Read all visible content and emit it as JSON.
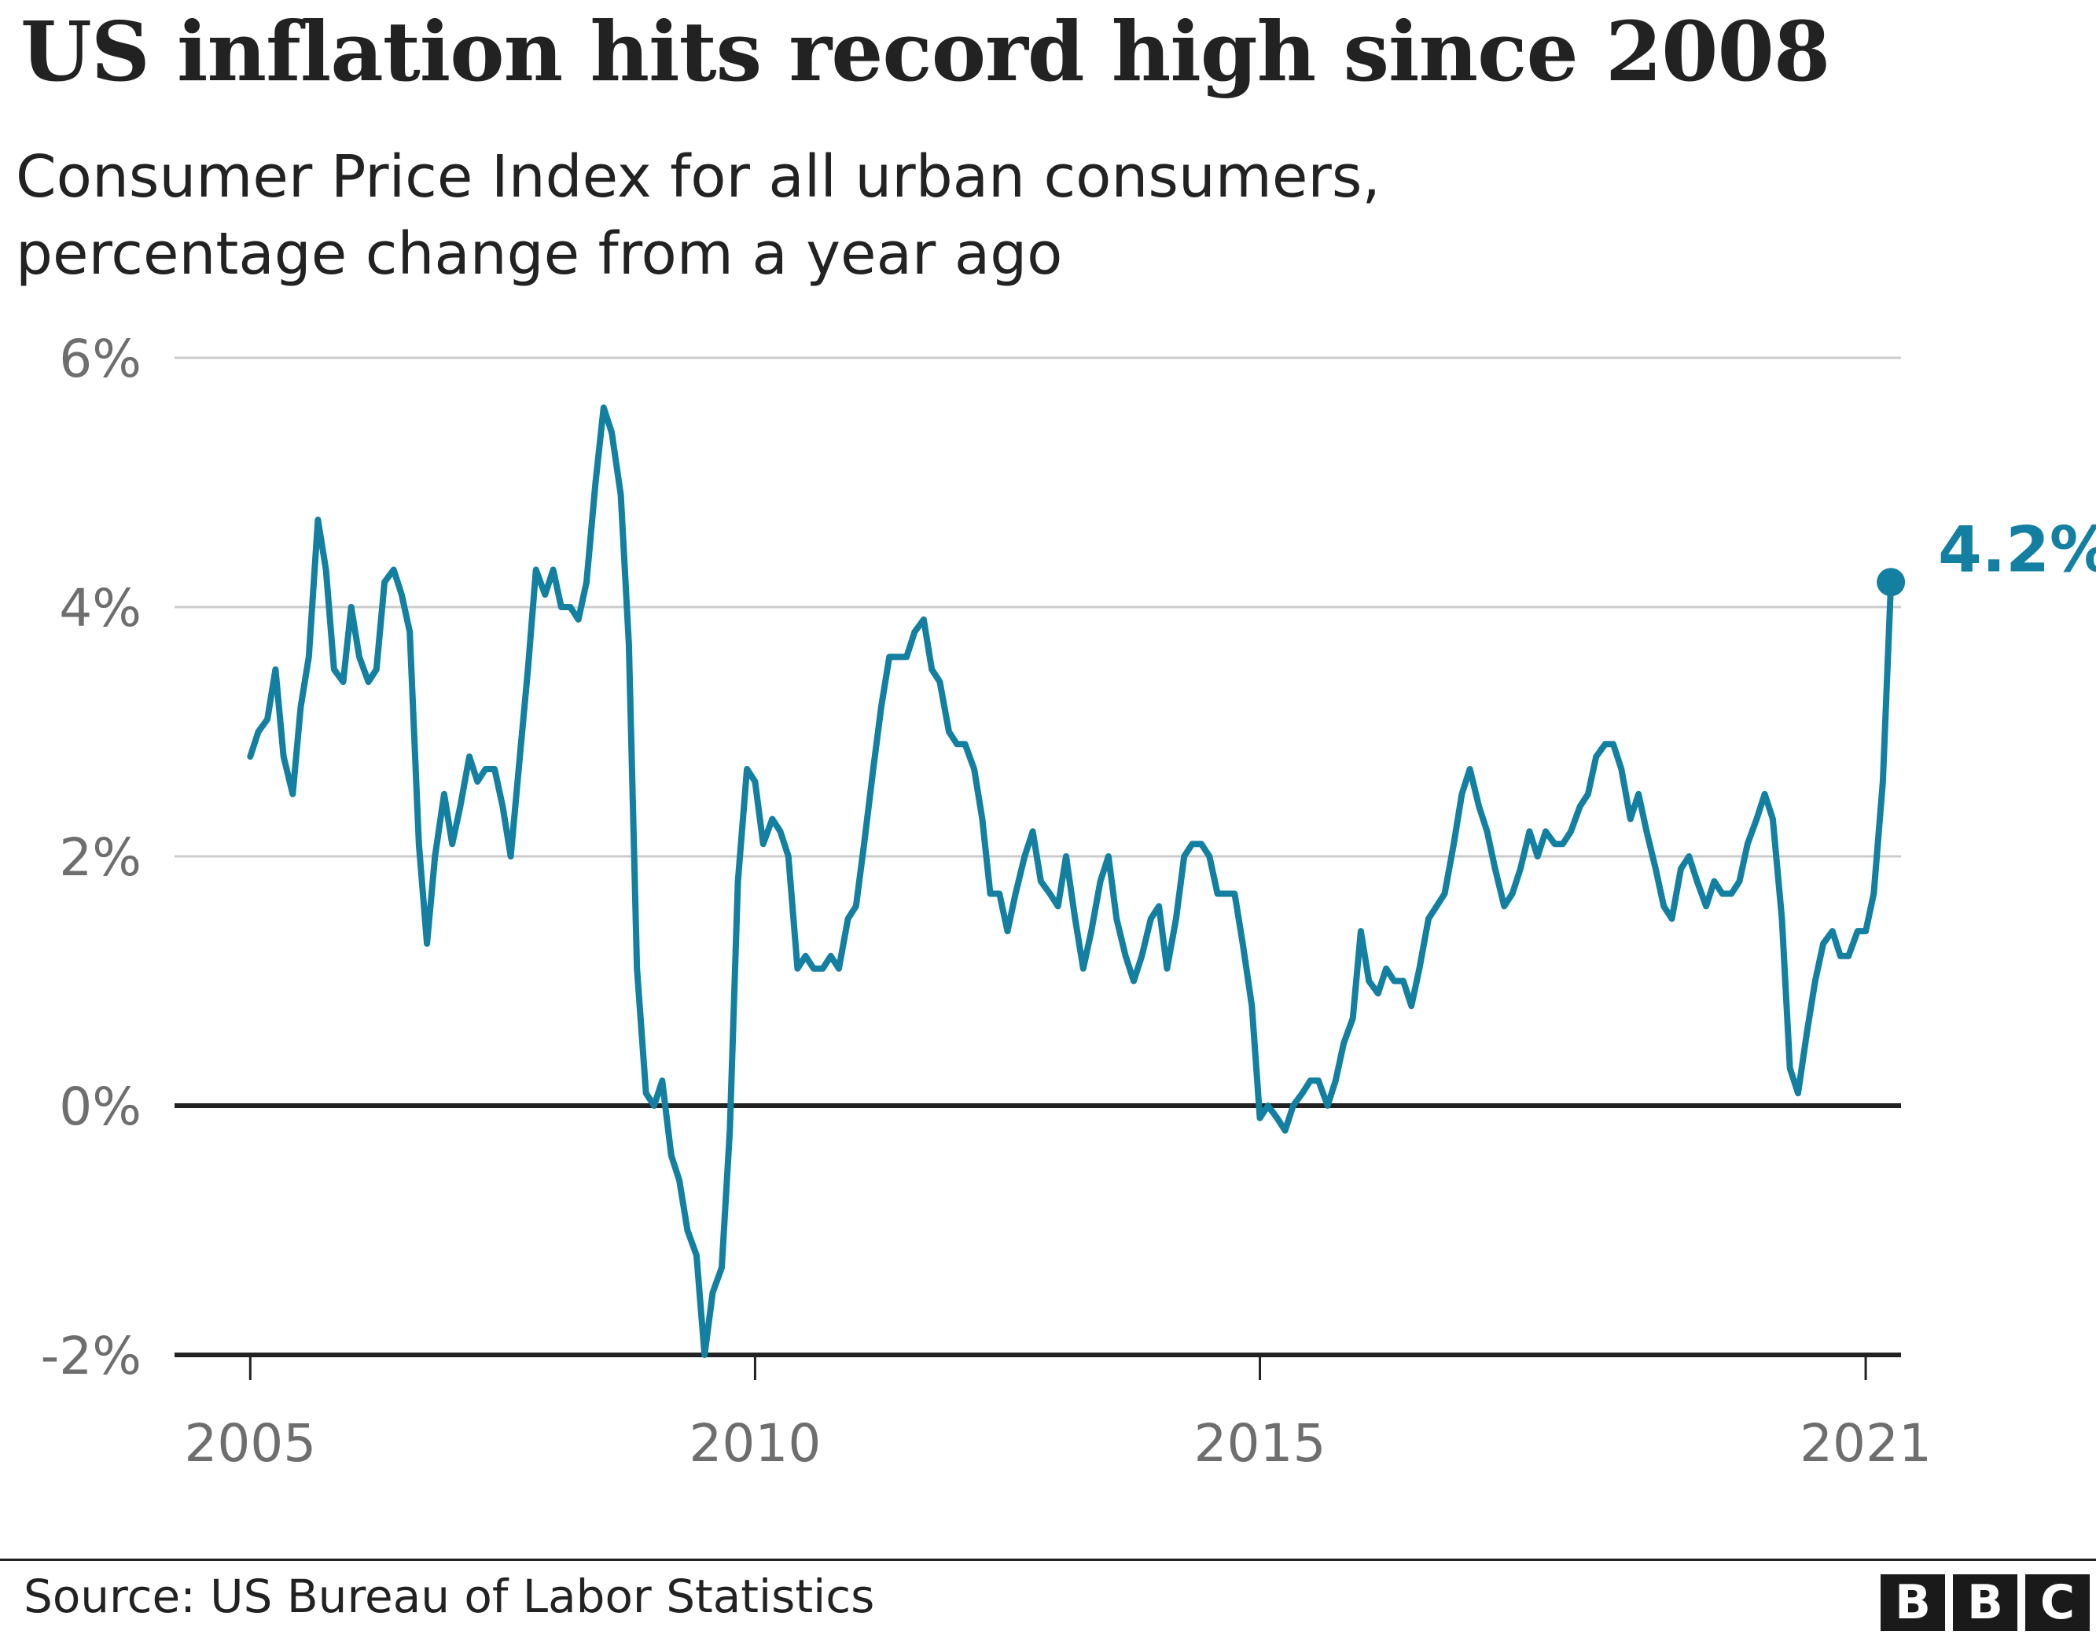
{
  "header": {
    "title": "US inflation hits record high since 2008",
    "subtitle_lines": [
      "Consumer Price Index for all urban consumers,",
      "percentage change from a year ago"
    ]
  },
  "chart_data": {
    "type": "line",
    "title": "US inflation hits record high since 2008",
    "subtitle": "Consumer Price Index for all urban consumers, percentage change from a year ago",
    "xlabel": "",
    "ylabel": "",
    "x_ticks": [
      {
        "value": 2005,
        "label": "2005"
      },
      {
        "value": 2010,
        "label": "2010"
      },
      {
        "value": 2015,
        "label": "2015"
      },
      {
        "value": 2021,
        "label": "2021"
      }
    ],
    "y_ticks": [
      {
        "value": 6,
        "label": "6%"
      },
      {
        "value": 4,
        "label": "4%"
      },
      {
        "value": 2,
        "label": "2%"
      },
      {
        "value": 0,
        "label": "0%"
      },
      {
        "value": -2,
        "label": "-2%"
      }
    ],
    "xlim": [
      2004.25,
      2021.35
    ],
    "ylim": [
      -2,
      6
    ],
    "grid": true,
    "line_color": "#1380A1",
    "series": [
      {
        "name": "",
        "values": [
          [
            2005.0,
            2.8
          ],
          [
            2005.08,
            3.0
          ],
          [
            2005.17,
            3.1
          ],
          [
            2005.25,
            3.5
          ],
          [
            2005.33,
            2.8
          ],
          [
            2005.42,
            2.5
          ],
          [
            2005.5,
            3.2
          ],
          [
            2005.58,
            3.6
          ],
          [
            2005.67,
            4.7
          ],
          [
            2005.75,
            4.3
          ],
          [
            2005.83,
            3.5
          ],
          [
            2005.92,
            3.4
          ],
          [
            2006.0,
            4.0
          ],
          [
            2006.08,
            3.6
          ],
          [
            2006.17,
            3.4
          ],
          [
            2006.25,
            3.5
          ],
          [
            2006.33,
            4.2
          ],
          [
            2006.42,
            4.3
          ],
          [
            2006.5,
            4.1
          ],
          [
            2006.58,
            3.8
          ],
          [
            2006.67,
            2.1
          ],
          [
            2006.75,
            1.3
          ],
          [
            2006.83,
            2.0
          ],
          [
            2006.92,
            2.5
          ],
          [
            2007.0,
            2.1
          ],
          [
            2007.08,
            2.4
          ],
          [
            2007.17,
            2.8
          ],
          [
            2007.25,
            2.6
          ],
          [
            2007.33,
            2.7
          ],
          [
            2007.42,
            2.7
          ],
          [
            2007.5,
            2.4
          ],
          [
            2007.58,
            2.0
          ],
          [
            2007.67,
            2.8
          ],
          [
            2007.75,
            3.5
          ],
          [
            2007.83,
            4.3
          ],
          [
            2007.92,
            4.1
          ],
          [
            2008.0,
            4.3
          ],
          [
            2008.08,
            4.0
          ],
          [
            2008.17,
            4.0
          ],
          [
            2008.25,
            3.9
          ],
          [
            2008.33,
            4.2
          ],
          [
            2008.42,
            5.0
          ],
          [
            2008.5,
            5.6
          ],
          [
            2008.58,
            5.4
          ],
          [
            2008.67,
            4.9
          ],
          [
            2008.75,
            3.7
          ],
          [
            2008.83,
            1.1
          ],
          [
            2008.92,
            0.1
          ],
          [
            2009.0,
            0.0
          ],
          [
            2009.08,
            0.2
          ],
          [
            2009.17,
            -0.4
          ],
          [
            2009.25,
            -0.6
          ],
          [
            2009.33,
            -1.0
          ],
          [
            2009.42,
            -1.2
          ],
          [
            2009.5,
            -2.0
          ],
          [
            2009.58,
            -1.5
          ],
          [
            2009.67,
            -1.3
          ],
          [
            2009.75,
            -0.2
          ],
          [
            2009.83,
            1.8
          ],
          [
            2009.92,
            2.7
          ],
          [
            2010.0,
            2.6
          ],
          [
            2010.08,
            2.1
          ],
          [
            2010.17,
            2.3
          ],
          [
            2010.25,
            2.2
          ],
          [
            2010.33,
            2.0
          ],
          [
            2010.42,
            1.1
          ],
          [
            2010.5,
            1.2
          ],
          [
            2010.58,
            1.1
          ],
          [
            2010.67,
            1.1
          ],
          [
            2010.75,
            1.2
          ],
          [
            2010.83,
            1.1
          ],
          [
            2010.92,
            1.5
          ],
          [
            2011.0,
            1.6
          ],
          [
            2011.08,
            2.1
          ],
          [
            2011.17,
            2.7
          ],
          [
            2011.25,
            3.2
          ],
          [
            2011.33,
            3.6
          ],
          [
            2011.42,
            3.6
          ],
          [
            2011.5,
            3.6
          ],
          [
            2011.58,
            3.8
          ],
          [
            2011.67,
            3.9
          ],
          [
            2011.75,
            3.5
          ],
          [
            2011.83,
            3.4
          ],
          [
            2011.92,
            3.0
          ],
          [
            2012.0,
            2.9
          ],
          [
            2012.08,
            2.9
          ],
          [
            2012.17,
            2.7
          ],
          [
            2012.25,
            2.3
          ],
          [
            2012.33,
            1.7
          ],
          [
            2012.42,
            1.7
          ],
          [
            2012.5,
            1.4
          ],
          [
            2012.58,
            1.7
          ],
          [
            2012.67,
            2.0
          ],
          [
            2012.75,
            2.2
          ],
          [
            2012.83,
            1.8
          ],
          [
            2012.92,
            1.7
          ],
          [
            2013.0,
            1.6
          ],
          [
            2013.08,
            2.0
          ],
          [
            2013.17,
            1.5
          ],
          [
            2013.25,
            1.1
          ],
          [
            2013.33,
            1.4
          ],
          [
            2013.42,
            1.8
          ],
          [
            2013.5,
            2.0
          ],
          [
            2013.58,
            1.5
          ],
          [
            2013.67,
            1.2
          ],
          [
            2013.75,
            1.0
          ],
          [
            2013.83,
            1.2
          ],
          [
            2013.92,
            1.5
          ],
          [
            2014.0,
            1.6
          ],
          [
            2014.08,
            1.1
          ],
          [
            2014.17,
            1.5
          ],
          [
            2014.25,
            2.0
          ],
          [
            2014.33,
            2.1
          ],
          [
            2014.42,
            2.1
          ],
          [
            2014.5,
            2.0
          ],
          [
            2014.58,
            1.7
          ],
          [
            2014.67,
            1.7
          ],
          [
            2014.75,
            1.7
          ],
          [
            2014.83,
            1.3
          ],
          [
            2014.92,
            0.8
          ],
          [
            2015.0,
            -0.1
          ],
          [
            2015.08,
            0.0
          ],
          [
            2015.17,
            -0.1
          ],
          [
            2015.25,
            -0.2
          ],
          [
            2015.33,
            0.0
          ],
          [
            2015.42,
            0.1
          ],
          [
            2015.5,
            0.2
          ],
          [
            2015.58,
            0.2
          ],
          [
            2015.67,
            0.0
          ],
          [
            2015.75,
            0.2
          ],
          [
            2015.83,
            0.5
          ],
          [
            2015.92,
            0.7
          ],
          [
            2016.0,
            1.4
          ],
          [
            2016.08,
            1.0
          ],
          [
            2016.17,
            0.9
          ],
          [
            2016.25,
            1.1
          ],
          [
            2016.33,
            1.0
          ],
          [
            2016.42,
            1.0
          ],
          [
            2016.5,
            0.8
          ],
          [
            2016.58,
            1.1
          ],
          [
            2016.67,
            1.5
          ],
          [
            2016.75,
            1.6
          ],
          [
            2016.83,
            1.7
          ],
          [
            2016.92,
            2.1
          ],
          [
            2017.0,
            2.5
          ],
          [
            2017.08,
            2.7
          ],
          [
            2017.17,
            2.4
          ],
          [
            2017.25,
            2.2
          ],
          [
            2017.33,
            1.9
          ],
          [
            2017.42,
            1.6
          ],
          [
            2017.5,
            1.7
          ],
          [
            2017.58,
            1.9
          ],
          [
            2017.67,
            2.2
          ],
          [
            2017.75,
            2.0
          ],
          [
            2017.83,
            2.2
          ],
          [
            2017.92,
            2.1
          ],
          [
            2018.0,
            2.1
          ],
          [
            2018.08,
            2.2
          ],
          [
            2018.17,
            2.4
          ],
          [
            2018.25,
            2.5
          ],
          [
            2018.33,
            2.8
          ],
          [
            2018.42,
            2.9
          ],
          [
            2018.5,
            2.9
          ],
          [
            2018.58,
            2.7
          ],
          [
            2018.67,
            2.3
          ],
          [
            2018.75,
            2.5
          ],
          [
            2018.83,
            2.2
          ],
          [
            2018.92,
            1.9
          ],
          [
            2019.0,
            1.6
          ],
          [
            2019.08,
            1.5
          ],
          [
            2019.17,
            1.9
          ],
          [
            2019.25,
            2.0
          ],
          [
            2019.33,
            1.8
          ],
          [
            2019.42,
            1.6
          ],
          [
            2019.5,
            1.8
          ],
          [
            2019.58,
            1.7
          ],
          [
            2019.67,
            1.7
          ],
          [
            2019.75,
            1.8
          ],
          [
            2019.83,
            2.1
          ],
          [
            2019.92,
            2.3
          ],
          [
            2020.0,
            2.5
          ],
          [
            2020.08,
            2.3
          ],
          [
            2020.17,
            1.5
          ],
          [
            2020.25,
            0.3
          ],
          [
            2020.33,
            0.1
          ],
          [
            2020.42,
            0.6
          ],
          [
            2020.5,
            1.0
          ],
          [
            2020.58,
            1.3
          ],
          [
            2020.67,
            1.4
          ],
          [
            2020.75,
            1.2
          ],
          [
            2020.83,
            1.2
          ],
          [
            2020.92,
            1.4
          ],
          [
            2021.0,
            1.4
          ],
          [
            2021.08,
            1.7
          ],
          [
            2021.17,
            2.6
          ],
          [
            2021.25,
            4.2
          ]
        ]
      }
    ],
    "annotations": [
      {
        "x": 2021.25,
        "y": 4.2,
        "text": "4.2%"
      }
    ]
  },
  "footer": {
    "source": "Source: US Bureau of Labor Statistics",
    "logo_letters": [
      "B",
      "B",
      "C"
    ]
  }
}
